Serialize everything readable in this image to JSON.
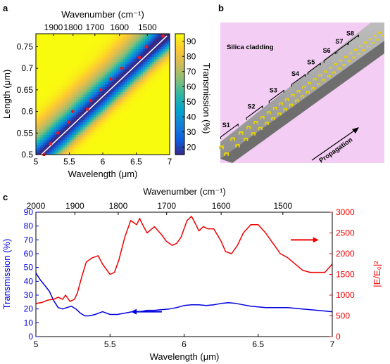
{
  "panels": {
    "a": "a",
    "b": "b",
    "c": "c"
  },
  "panel_b": {
    "cladding_label": "Silica cladding",
    "propagation_label": "Propagation",
    "segments": [
      "S1",
      "S2",
      "S3",
      "S4",
      "S5",
      "S6",
      "S7",
      "S8"
    ],
    "colors": {
      "background": "#f3cdf3",
      "waveguide": "#a0a0a0",
      "antenna": "#e8d400"
    }
  },
  "chart_data": [
    {
      "type": "heatmap",
      "panel": "a",
      "xlabel": "Wavelength (μm)",
      "ylabel": "Length (μm)",
      "top_xlabel": "Wavenumber (cm⁻¹)",
      "colorbar_label": "Transmission (%)",
      "xlim": [
        5,
        7
      ],
      "ylim": [
        0.5,
        0.78
      ],
      "clim": [
        15,
        95
      ],
      "xticks": [
        "5",
        "5.5",
        "6",
        "6.5",
        "7"
      ],
      "yticks": [
        "0.5",
        "0.55",
        "0.6",
        "0.65",
        "0.7",
        "0.75"
      ],
      "top_xticks": [
        "1900",
        "1800",
        "1700",
        "1600",
        "1500"
      ],
      "top_xtick_values": [
        1900,
        1800,
        1700,
        1600,
        1500
      ],
      "colorbar_ticks": [
        "20",
        "30",
        "40",
        "50",
        "60",
        "70",
        "80",
        "90"
      ],
      "colormap": [
        "#352a87",
        "#0f5cdd",
        "#1481d6",
        "#06a4ca",
        "#2eb7a4",
        "#87bf77",
        "#d1bb59",
        "#fec832",
        "#f9fb0e"
      ],
      "resonance_line": {
        "x": [
          5.08,
          6.96
        ],
        "y": [
          0.5,
          0.775
        ],
        "color": "#ffffff"
      },
      "markers": {
        "color": "#e8191e",
        "x": [
          5.12,
          5.22,
          5.33,
          5.49,
          5.55,
          5.77,
          5.82,
          5.97,
          6.12,
          6.28,
          6.55,
          6.65,
          6.9
        ],
        "y": [
          0.5,
          0.525,
          0.55,
          0.575,
          0.6,
          0.605,
          0.625,
          0.65,
          0.675,
          0.7,
          0.725,
          0.75,
          0.775
        ]
      }
    },
    {
      "type": "line",
      "panel": "c",
      "xlabel": "Wavelength (μm)",
      "top_xlabel": "Wavenumber (cm⁻¹)",
      "ylabel_left": "Transmission (%)",
      "ylabel_right": "|E/E₀|²",
      "xlim": [
        5,
        7
      ],
      "ylim_left": [
        0,
        90
      ],
      "ylim_right": [
        0,
        3000
      ],
      "xticks": [
        "5",
        "5.5",
        "6",
        "6.5",
        "7"
      ],
      "yticks_left": [
        "0",
        "10",
        "20",
        "30",
        "40",
        "50",
        "60",
        "70",
        "80",
        "90"
      ],
      "yticks_right": [
        "0",
        "500",
        "1000",
        "1500",
        "2000",
        "2500",
        "3000"
      ],
      "top_xticks": [
        "2000",
        "1900",
        "1800",
        "1700",
        "1600",
        "1500"
      ],
      "top_xtick_values": [
        2000,
        1900,
        1800,
        1700,
        1600,
        1500
      ],
      "series": [
        {
          "axis": "left",
          "color": "#0000dd",
          "x": [
            5.0,
            5.03,
            5.06,
            5.09,
            5.12,
            5.15,
            5.18,
            5.21,
            5.24,
            5.27,
            5.3,
            5.33,
            5.36,
            5.4,
            5.45,
            5.5,
            5.55,
            5.6,
            5.65,
            5.7,
            5.75,
            5.8,
            5.85,
            5.9,
            5.95,
            6.0,
            6.05,
            6.1,
            6.15,
            6.2,
            6.25,
            6.3,
            6.35,
            6.4,
            6.45,
            6.5,
            6.55,
            6.6,
            6.7,
            6.8,
            6.9,
            7.0
          ],
          "y": [
            46,
            41,
            37,
            33,
            26,
            21,
            20,
            21,
            22,
            20,
            17,
            15,
            15,
            16,
            18,
            16,
            16,
            17,
            18,
            18,
            19,
            19,
            19.5,
            20,
            21,
            22.5,
            23,
            23,
            22.5,
            23,
            24,
            24.5,
            24,
            23,
            22,
            21.5,
            21,
            21,
            21,
            20,
            19,
            18
          ]
        },
        {
          "axis": "right",
          "color": "#ee0000",
          "x": [
            5.0,
            5.04,
            5.08,
            5.12,
            5.15,
            5.18,
            5.2,
            5.23,
            5.26,
            5.28,
            5.31,
            5.34,
            5.38,
            5.42,
            5.45,
            5.48,
            5.5,
            5.53,
            5.56,
            5.6,
            5.64,
            5.68,
            5.7,
            5.72,
            5.75,
            5.8,
            5.85,
            5.88,
            5.92,
            5.95,
            5.98,
            6.02,
            6.05,
            6.08,
            6.1,
            6.13,
            6.16,
            6.2,
            6.25,
            6.28,
            6.32,
            6.36,
            6.4,
            6.45,
            6.5,
            6.55,
            6.6,
            6.65,
            6.7,
            6.75,
            6.8,
            6.85,
            6.9,
            6.95,
            7.0
          ],
          "y": [
            800,
            820,
            880,
            900,
            950,
            900,
            1000,
            850,
            900,
            1050,
            1450,
            1800,
            1900,
            1950,
            1750,
            1600,
            1500,
            1550,
            1850,
            2400,
            2800,
            2700,
            2850,
            2700,
            2500,
            2650,
            2450,
            2300,
            2200,
            2250,
            2400,
            2800,
            2900,
            2700,
            2550,
            2650,
            2600,
            2600,
            2300,
            2050,
            2000,
            2200,
            2500,
            2700,
            2700,
            2500,
            2250,
            2000,
            1900,
            1750,
            1600,
            1550,
            1550,
            1550,
            1750
          ]
        }
      ],
      "annotations": [
        {
          "type": "arrow",
          "direction": "right",
          "color": "#ee0000",
          "x_from": 6.72,
          "x_to": 6.88,
          "y": 70,
          "axis": "left"
        },
        {
          "type": "arrow",
          "direction": "left",
          "color": "#0000dd",
          "x_from": 5.85,
          "x_to": 5.67,
          "y": 18,
          "axis": "left"
        }
      ]
    }
  ]
}
